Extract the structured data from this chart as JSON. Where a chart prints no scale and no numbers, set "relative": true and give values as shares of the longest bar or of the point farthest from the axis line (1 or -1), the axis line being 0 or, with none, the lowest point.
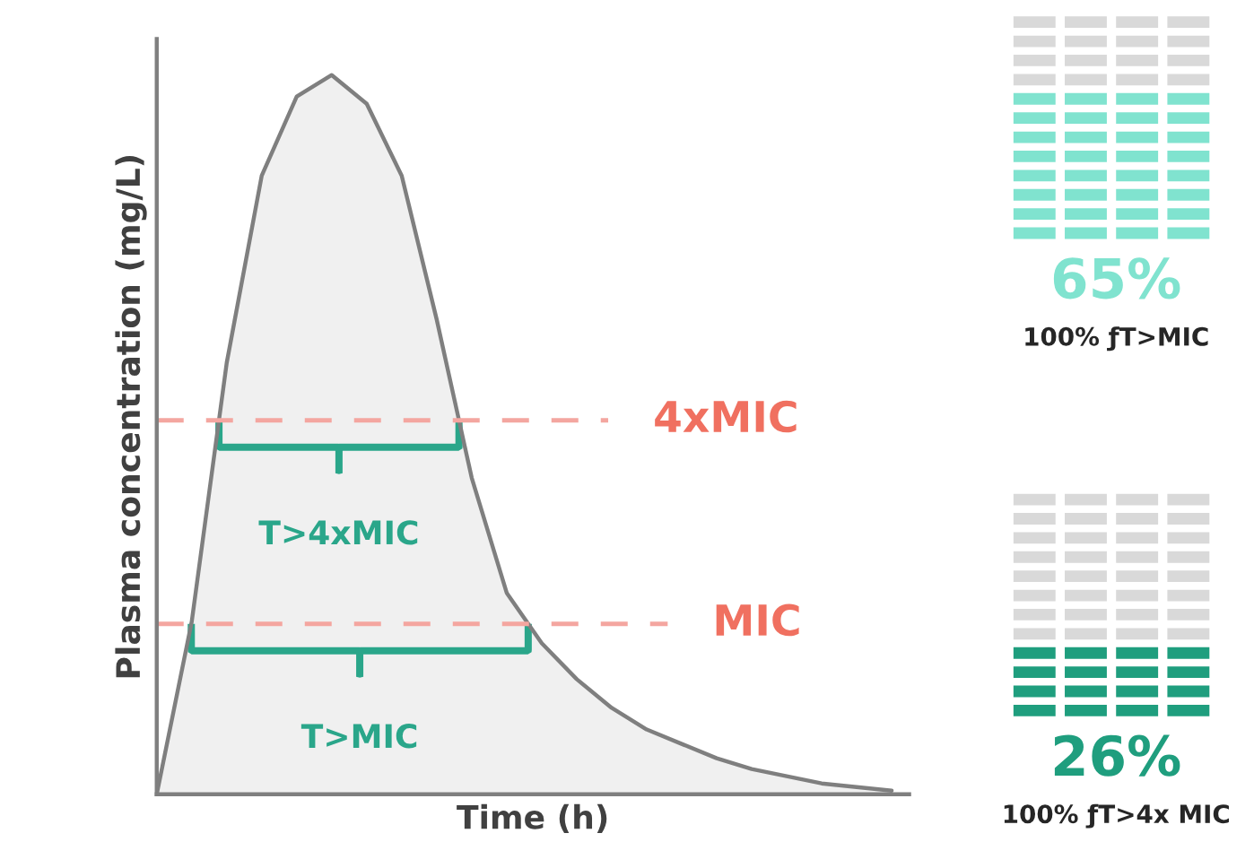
{
  "chart_data": [
    {
      "type": "area",
      "relative": true,
      "xlabel": "Time (h)",
      "ylabel": "Plasma concentration (mg/L)",
      "categories": [
        null,
        null,
        null,
        null,
        null,
        null,
        null,
        null,
        null,
        null,
        null,
        null,
        null,
        null,
        null,
        null,
        null,
        null,
        null,
        null,
        null,
        null
      ],
      "series": [
        {
          "color": "#7f7f7f",
          "values": [
            0,
            0.24,
            0.6,
            0.86,
            0.97,
            1.0,
            0.96,
            0.86,
            0.66,
            0.44,
            0.28,
            0.21,
            0.16,
            0.12,
            0.09,
            0.07,
            0.05,
            0.035,
            0.025,
            0.015,
            0.01,
            0.005
          ]
        }
      ],
      "ref_lines": [
        {
          "axis": "y",
          "value": 0.52,
          "label": "4xMIC",
          "color": "#f4a6a0",
          "line_style": "dashed"
        },
        {
          "axis": "y",
          "value": 0.237,
          "label": "MIC",
          "color": "#f4a6a0",
          "line_style": "dashed"
        }
      ],
      "annotations": [
        "T>4xMIC",
        "T>MIC"
      ]
    },
    {
      "type": "other",
      "values": [
        65
      ],
      "value_labels": [
        "65%"
      ],
      "color": "#80e3cf",
      "annotations": [
        "100% ƒT>MIC"
      ]
    },
    {
      "type": "other",
      "values": [
        26
      ],
      "value_labels": [
        "26%"
      ],
      "color": "#1f9e7e",
      "annotations": [
        "100% ƒT>4x MIC"
      ]
    }
  ]
}
